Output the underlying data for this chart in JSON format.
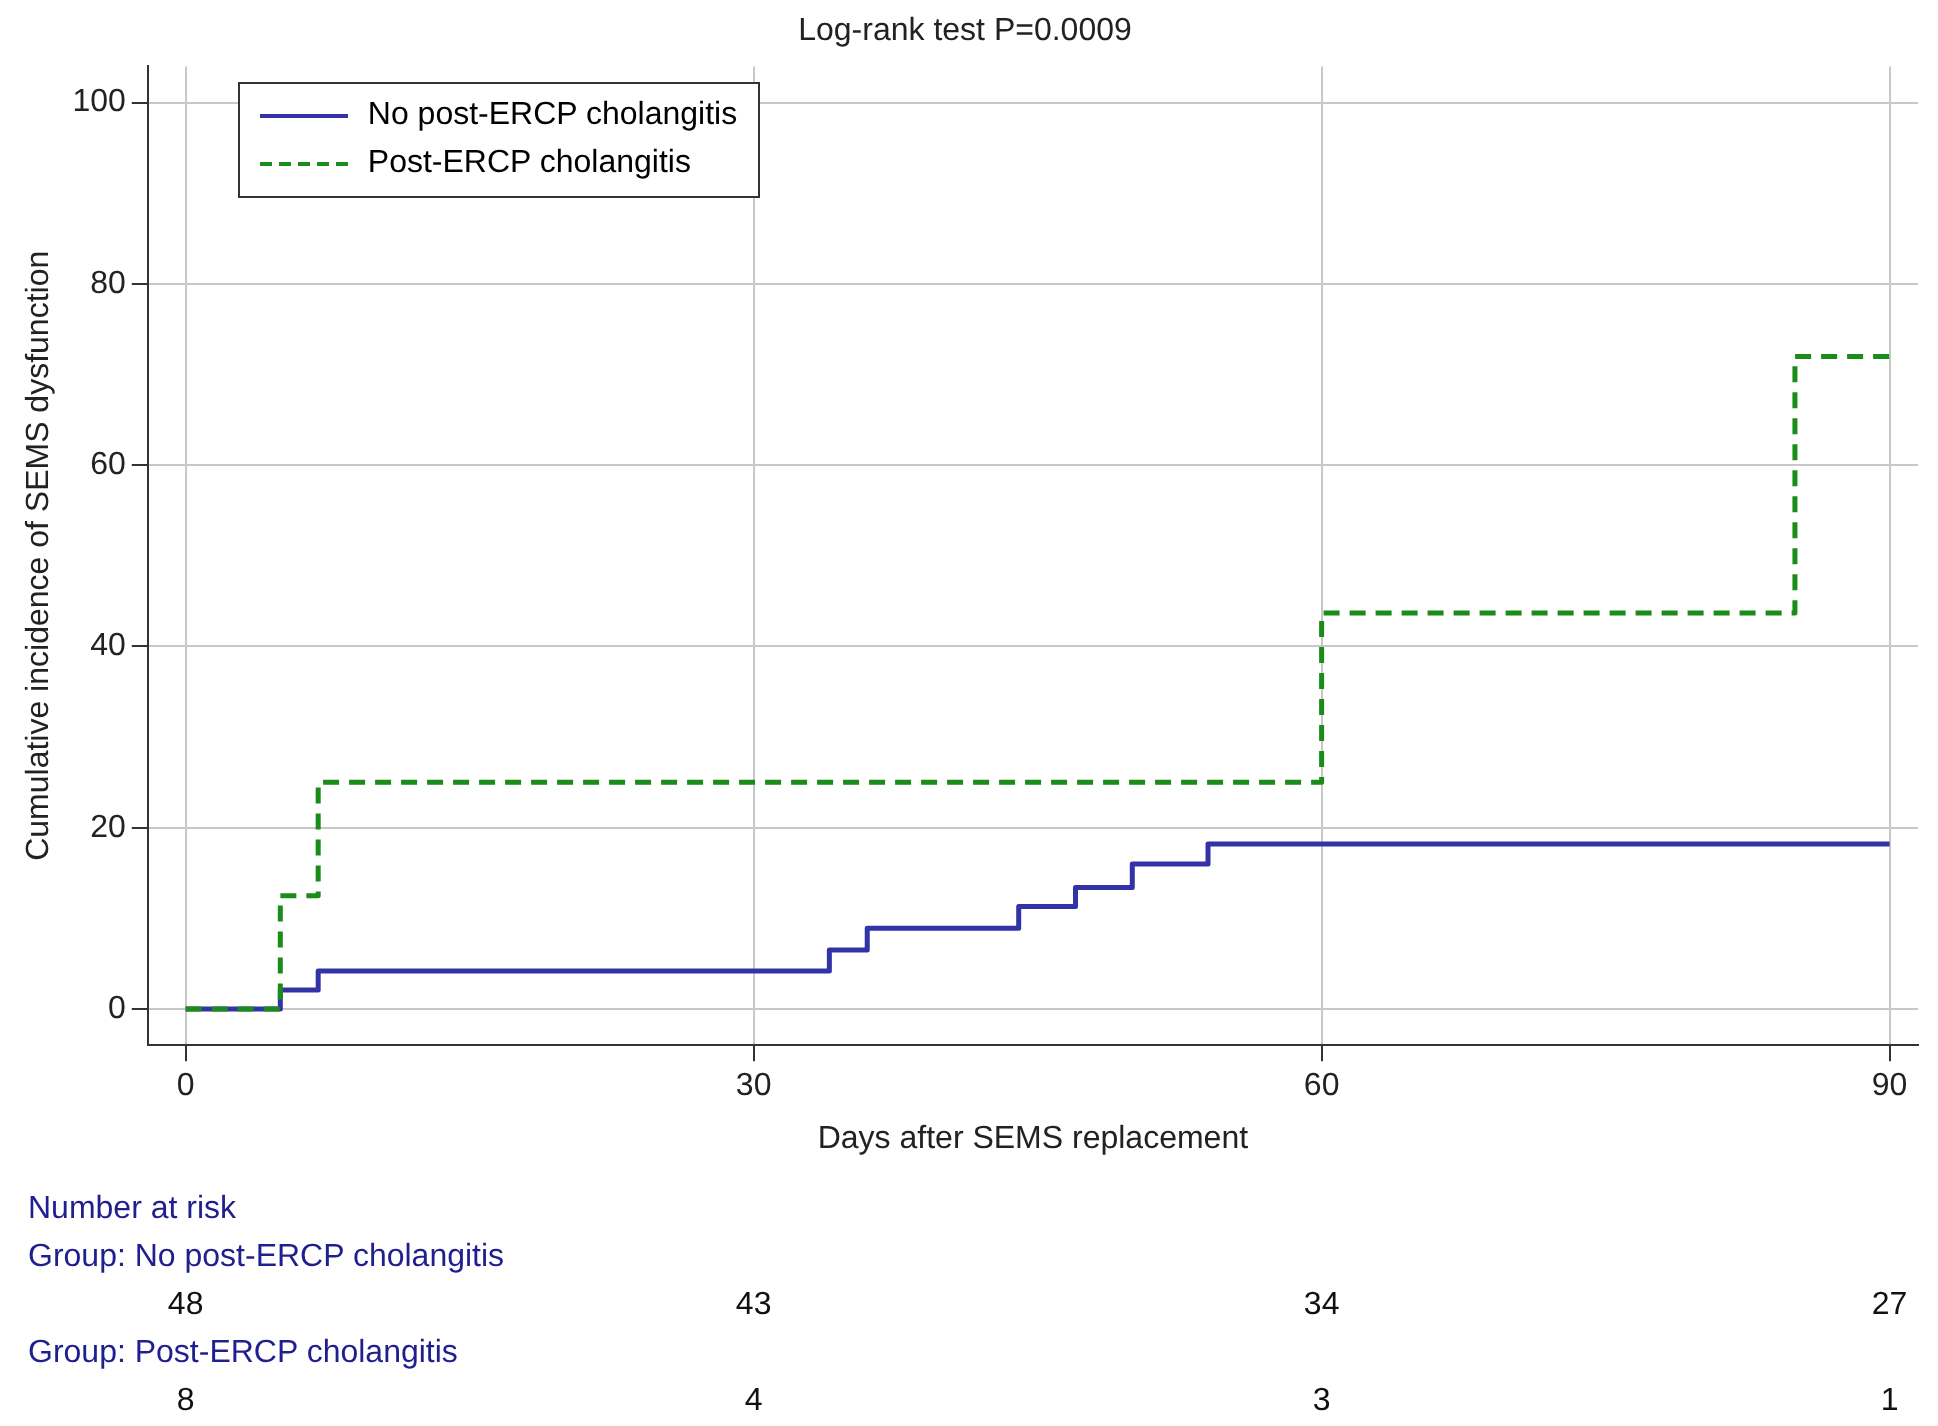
{
  "chart_data": {
    "type": "step",
    "title": "Log-rank test P=0.0009",
    "xlabel": "Days after SEMS replacement",
    "ylabel": "Cumulative incidence of SEMS dysfunction",
    "xlim": [
      -2,
      91.5
    ],
    "xticks": [
      0,
      30,
      60,
      90
    ],
    "ylim": [
      -4,
      104
    ],
    "yticks": [
      0,
      20,
      40,
      60,
      80,
      100
    ],
    "grid": true,
    "legend": "top left",
    "series": [
      {
        "name": "No post-ERCP cholangitis",
        "color": "#3333a8",
        "line_style": "solid",
        "x": [
          0,
          5,
          7,
          34,
          36,
          44,
          47,
          50,
          54,
          90
        ],
        "values": [
          0,
          2.1,
          4.2,
          6.5,
          8.9,
          11.3,
          13.4,
          16.0,
          18.2,
          18.2
        ]
      },
      {
        "name": "Post-ERCP cholangitis",
        "color": "#1a8c1a",
        "line_style": "dashed",
        "x": [
          0,
          5,
          7,
          60,
          85,
          90
        ],
        "values": [
          0,
          12.5,
          25,
          43.7,
          72,
          72
        ]
      }
    ],
    "annotations": [
      "Number at risk",
      "Group: No post-ERCP cholangitis",
      "48 43 34 27",
      "Group: Post-ERCP cholangitis",
      "8 4 3 1"
    ]
  }
}
